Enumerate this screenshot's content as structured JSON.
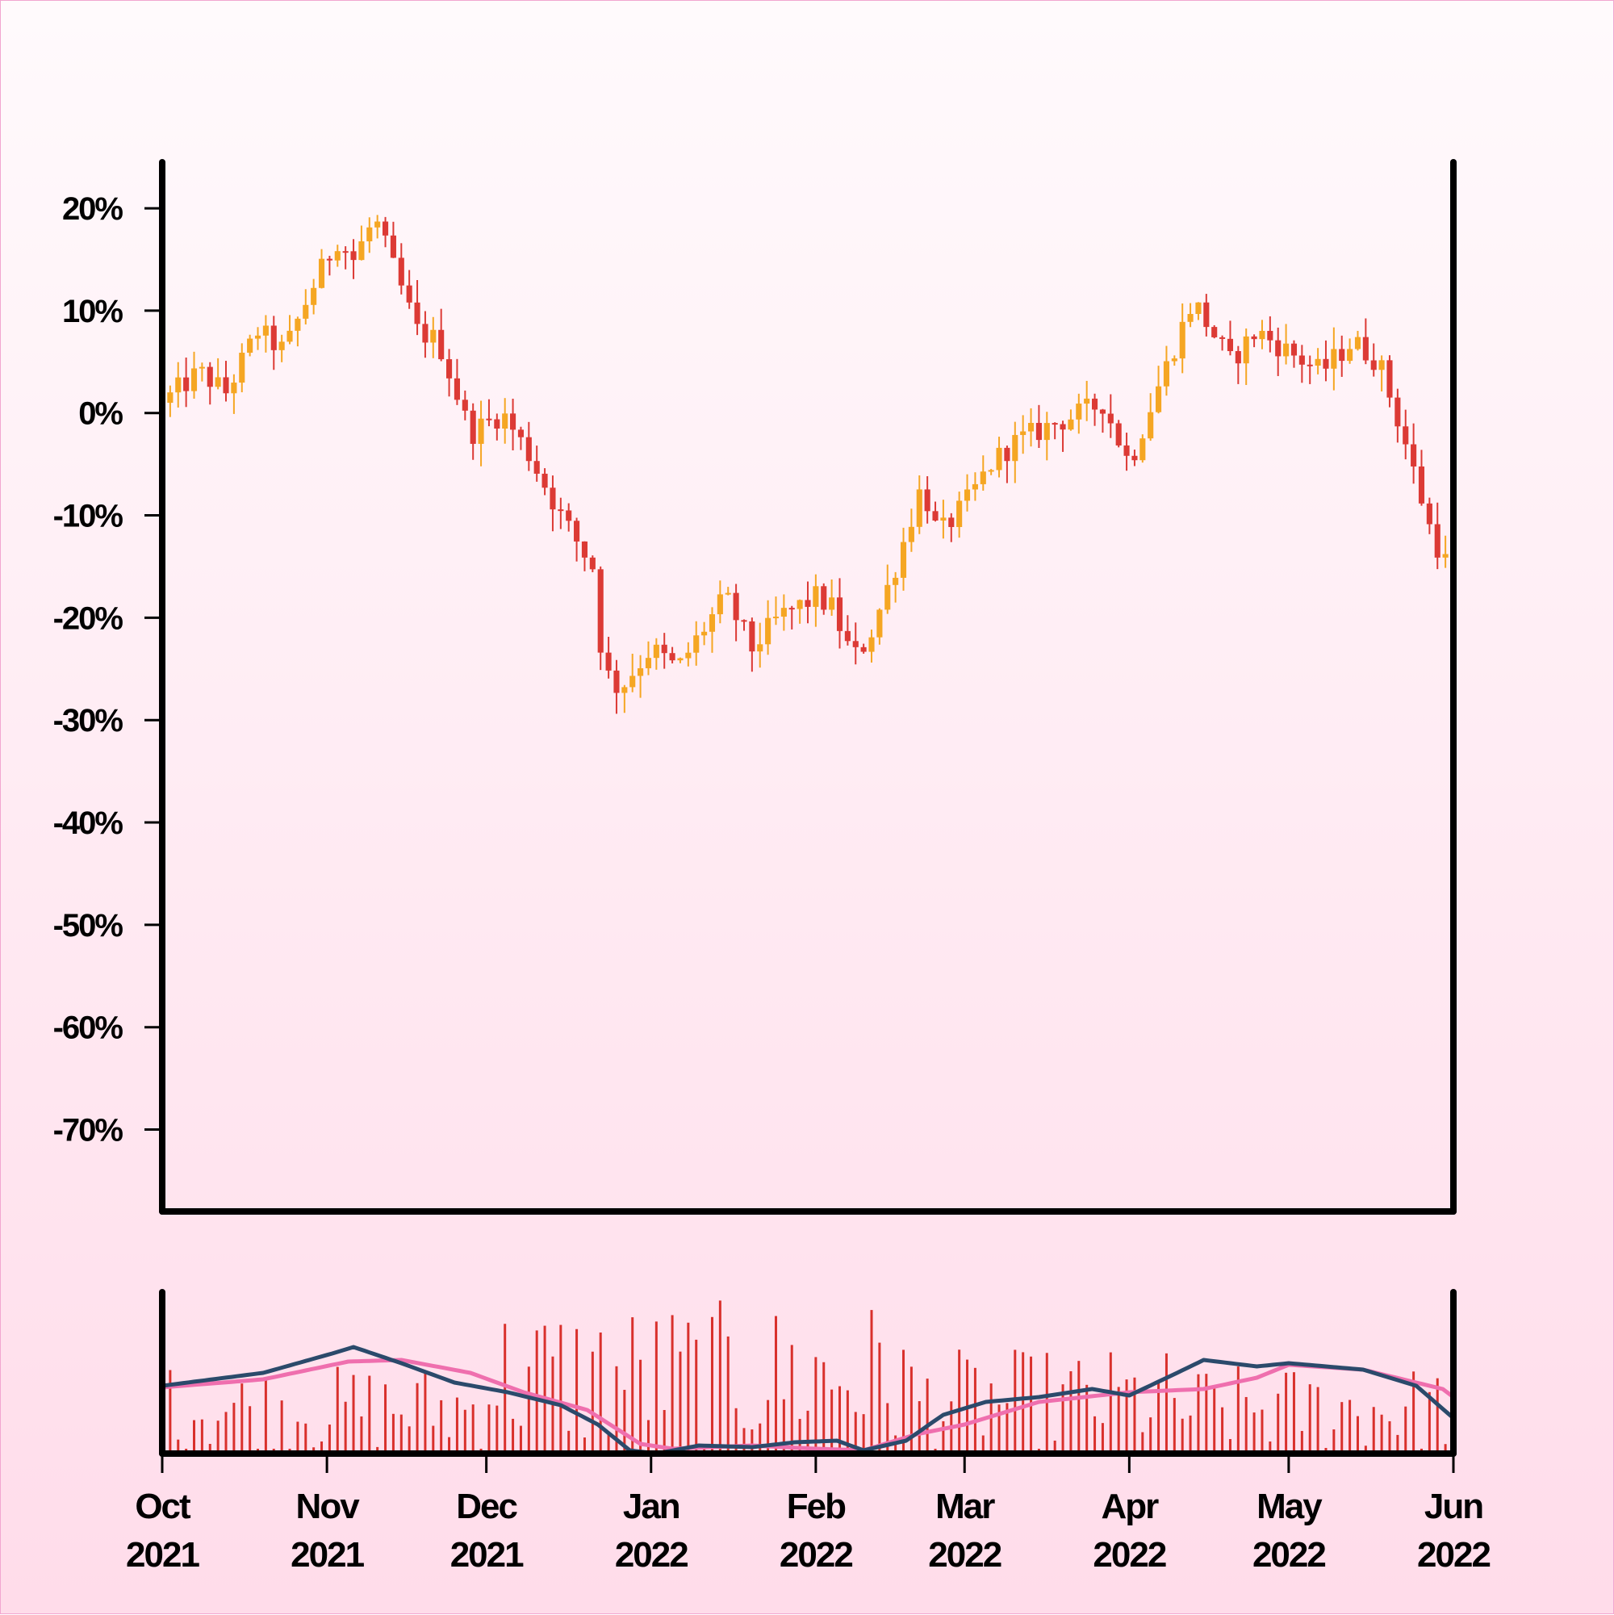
{
  "chart_data": [
    {
      "type": "candlestick",
      "title": "",
      "xlabel": "",
      "ylabel": "",
      "ylim": [
        -78,
        24.5
      ],
      "y_ticks": [
        "20%",
        "10%",
        "0%",
        "-10%",
        "-20%",
        "-30%",
        "-40%",
        "-50%",
        "-60%",
        "-70%"
      ],
      "y_tick_values": [
        20,
        10,
        0,
        -10,
        -20,
        -30,
        -40,
        -50,
        -60,
        -70
      ],
      "x_range": [
        "2021-10-01",
        "2022-06-01"
      ],
      "up_color": "#f5a623",
      "down_color": "#dc3a35",
      "anchors": [
        [
          "2021-10-01",
          1
        ],
        [
          "2021-10-08",
          4
        ],
        [
          "2021-10-13",
          2
        ],
        [
          "2021-10-19",
          8
        ],
        [
          "2021-10-24",
          6
        ],
        [
          "2021-10-29",
          12
        ],
        [
          "2021-11-03",
          17
        ],
        [
          "2021-11-06",
          15
        ],
        [
          "2021-11-10",
          19
        ],
        [
          "2021-11-18",
          8
        ],
        [
          "2021-11-22",
          7
        ],
        [
          "2021-11-28",
          -2
        ],
        [
          "2021-12-04",
          0
        ],
        [
          "2021-12-09",
          -4
        ],
        [
          "2021-12-15",
          -10
        ],
        [
          "2021-12-21",
          -15
        ],
        [
          "2021-12-23",
          -25
        ],
        [
          "2021-12-26",
          -27
        ],
        [
          "2022-01-01",
          -23
        ],
        [
          "2022-01-06",
          -25
        ],
        [
          "2022-01-11",
          -21
        ],
        [
          "2022-01-15",
          -18
        ],
        [
          "2022-01-20",
          -23
        ],
        [
          "2022-01-25",
          -20
        ],
        [
          "2022-02-01",
          -18
        ],
        [
          "2022-02-04",
          -19
        ],
        [
          "2022-02-08",
          -24
        ],
        [
          "2022-02-11",
          -22
        ],
        [
          "2022-02-16",
          -15
        ],
        [
          "2022-02-21",
          -7
        ],
        [
          "2022-02-24",
          -12
        ],
        [
          "2022-03-01",
          -9
        ],
        [
          "2022-03-06",
          -5
        ],
        [
          "2022-03-10",
          -3
        ],
        [
          "2022-03-14",
          -2
        ],
        [
          "2022-03-18",
          -1
        ],
        [
          "2022-03-23",
          0
        ],
        [
          "2022-03-27",
          1
        ],
        [
          "2022-04-01",
          -5
        ],
        [
          "2022-04-06",
          2
        ],
        [
          "2022-04-13",
          11
        ],
        [
          "2022-04-20",
          5
        ],
        [
          "2022-04-25",
          8
        ],
        [
          "2022-05-01",
          6
        ],
        [
          "2022-05-07",
          4
        ],
        [
          "2022-05-13",
          7
        ],
        [
          "2022-05-18",
          5
        ],
        [
          "2022-05-23",
          -3
        ],
        [
          "2022-05-28",
          -12
        ],
        [
          "2022-06-01",
          -16
        ]
      ]
    },
    {
      "type": "bar",
      "title": "",
      "series": [
        {
          "name": "",
          "kind": "bar",
          "color": "#d9302c"
        },
        {
          "name": "",
          "kind": "line",
          "color": "#2b4a6b"
        },
        {
          "name": "",
          "kind": "line",
          "color": "#ef6fae"
        }
      ],
      "x_ticks": [
        {
          "month": "Oct",
          "year": "2021"
        },
        {
          "month": "Nov",
          "year": "2021"
        },
        {
          "month": "Dec",
          "year": "2021"
        },
        {
          "month": "Jan",
          "year": "2022"
        },
        {
          "month": "Feb",
          "year": "2022"
        },
        {
          "month": "Mar",
          "year": "2022"
        },
        {
          "month": "Apr",
          "year": "2022"
        },
        {
          "month": "May",
          "year": "2022"
        },
        {
          "month": "Jun",
          "year": "2022"
        }
      ],
      "ylim": [
        0,
        100
      ],
      "line_anchors_dark": [
        [
          "2021-10-01",
          42
        ],
        [
          "2021-10-20",
          50
        ],
        [
          "2021-11-02",
          62
        ],
        [
          "2021-11-06",
          66
        ],
        [
          "2021-11-15",
          56
        ],
        [
          "2021-11-25",
          44
        ],
        [
          "2021-12-05",
          38
        ],
        [
          "2021-12-15",
          30
        ],
        [
          "2021-12-22",
          18
        ],
        [
          "2021-12-28",
          2
        ],
        [
          "2022-01-02",
          0
        ],
        [
          "2022-01-10",
          5
        ],
        [
          "2022-01-20",
          4
        ],
        [
          "2022-01-28",
          7
        ],
        [
          "2022-02-05",
          8
        ],
        [
          "2022-02-10",
          2
        ],
        [
          "2022-02-18",
          8
        ],
        [
          "2022-02-25",
          24
        ],
        [
          "2022-03-05",
          32
        ],
        [
          "2022-03-15",
          35
        ],
        [
          "2022-03-25",
          40
        ],
        [
          "2022-04-01",
          36
        ],
        [
          "2022-04-10",
          50
        ],
        [
          "2022-04-15",
          58
        ],
        [
          "2022-04-25",
          54
        ],
        [
          "2022-05-01",
          56
        ],
        [
          "2022-05-15",
          52
        ],
        [
          "2022-05-25",
          42
        ],
        [
          "2022-06-01",
          22
        ]
      ],
      "line_anchors_pink": [
        [
          "2021-10-01",
          41
        ],
        [
          "2021-10-20",
          46
        ],
        [
          "2021-11-05",
          57
        ],
        [
          "2021-11-15",
          58
        ],
        [
          "2021-11-28",
          50
        ],
        [
          "2021-12-08",
          38
        ],
        [
          "2021-12-20",
          27
        ],
        [
          "2021-12-30",
          6
        ],
        [
          "2022-01-05",
          3
        ],
        [
          "2022-01-20",
          5
        ],
        [
          "2022-02-01",
          3
        ],
        [
          "2022-02-10",
          2
        ],
        [
          "2022-02-20",
          12
        ],
        [
          "2022-03-01",
          18
        ],
        [
          "2022-03-15",
          32
        ],
        [
          "2022-04-01",
          38
        ],
        [
          "2022-04-15",
          40
        ],
        [
          "2022-04-25",
          47
        ],
        [
          "2022-05-01",
          55
        ],
        [
          "2022-05-15",
          52
        ],
        [
          "2022-05-30",
          40
        ],
        [
          "2022-06-01",
          35
        ]
      ]
    }
  ]
}
